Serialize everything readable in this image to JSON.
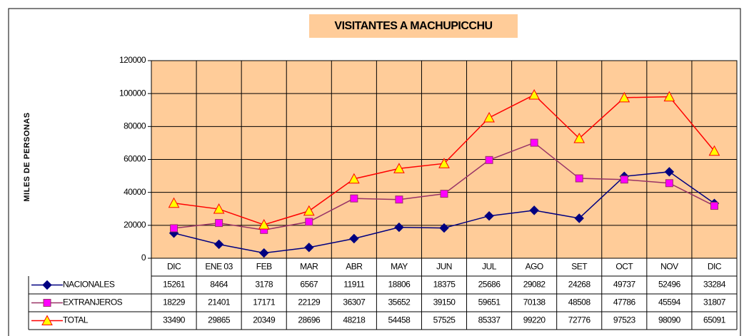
{
  "chart_data": {
    "type": "line",
    "title": "VISITANTES A MACHUPICCHU",
    "y_label": "MILES DE PERSONAS",
    "categories": [
      "DIC",
      "ENE 03",
      "FEB",
      "MAR",
      "ABR",
      "MAY",
      "JUN",
      "JUL",
      "AGO",
      "SET",
      "OCT",
      "NOV",
      "DIC"
    ],
    "series": [
      {
        "name": "NACIONALES",
        "color": "#000080",
        "marker": "diamond",
        "marker_color": "#000080",
        "values": [
          15261,
          8464,
          3178,
          6567,
          11911,
          18806,
          18375,
          25686,
          29082,
          24268,
          49737,
          52496,
          33284
        ]
      },
      {
        "name": "EXTRANJEROS",
        "color": "#993366",
        "marker": "square",
        "marker_color": "#FF00FF",
        "values": [
          18229,
          21401,
          17171,
          22129,
          36307,
          35652,
          39150,
          59651,
          70138,
          48508,
          47786,
          45594,
          31807
        ]
      },
      {
        "name": "TOTAL",
        "color": "#FF0000",
        "marker": "triangle",
        "marker_color": "#FFFF00",
        "values": [
          33490,
          29865,
          20349,
          28696,
          48218,
          54458,
          57525,
          85337,
          99220,
          72776,
          97523,
          98090,
          65091
        ]
      }
    ],
    "ylim": [
      0,
      120000
    ],
    "yticks": [
      0,
      20000,
      40000,
      60000,
      80000,
      100000,
      120000
    ],
    "grid": true,
    "plot_background": "#FFCC99",
    "title_background": "#FFCC99",
    "data_table": true
  }
}
